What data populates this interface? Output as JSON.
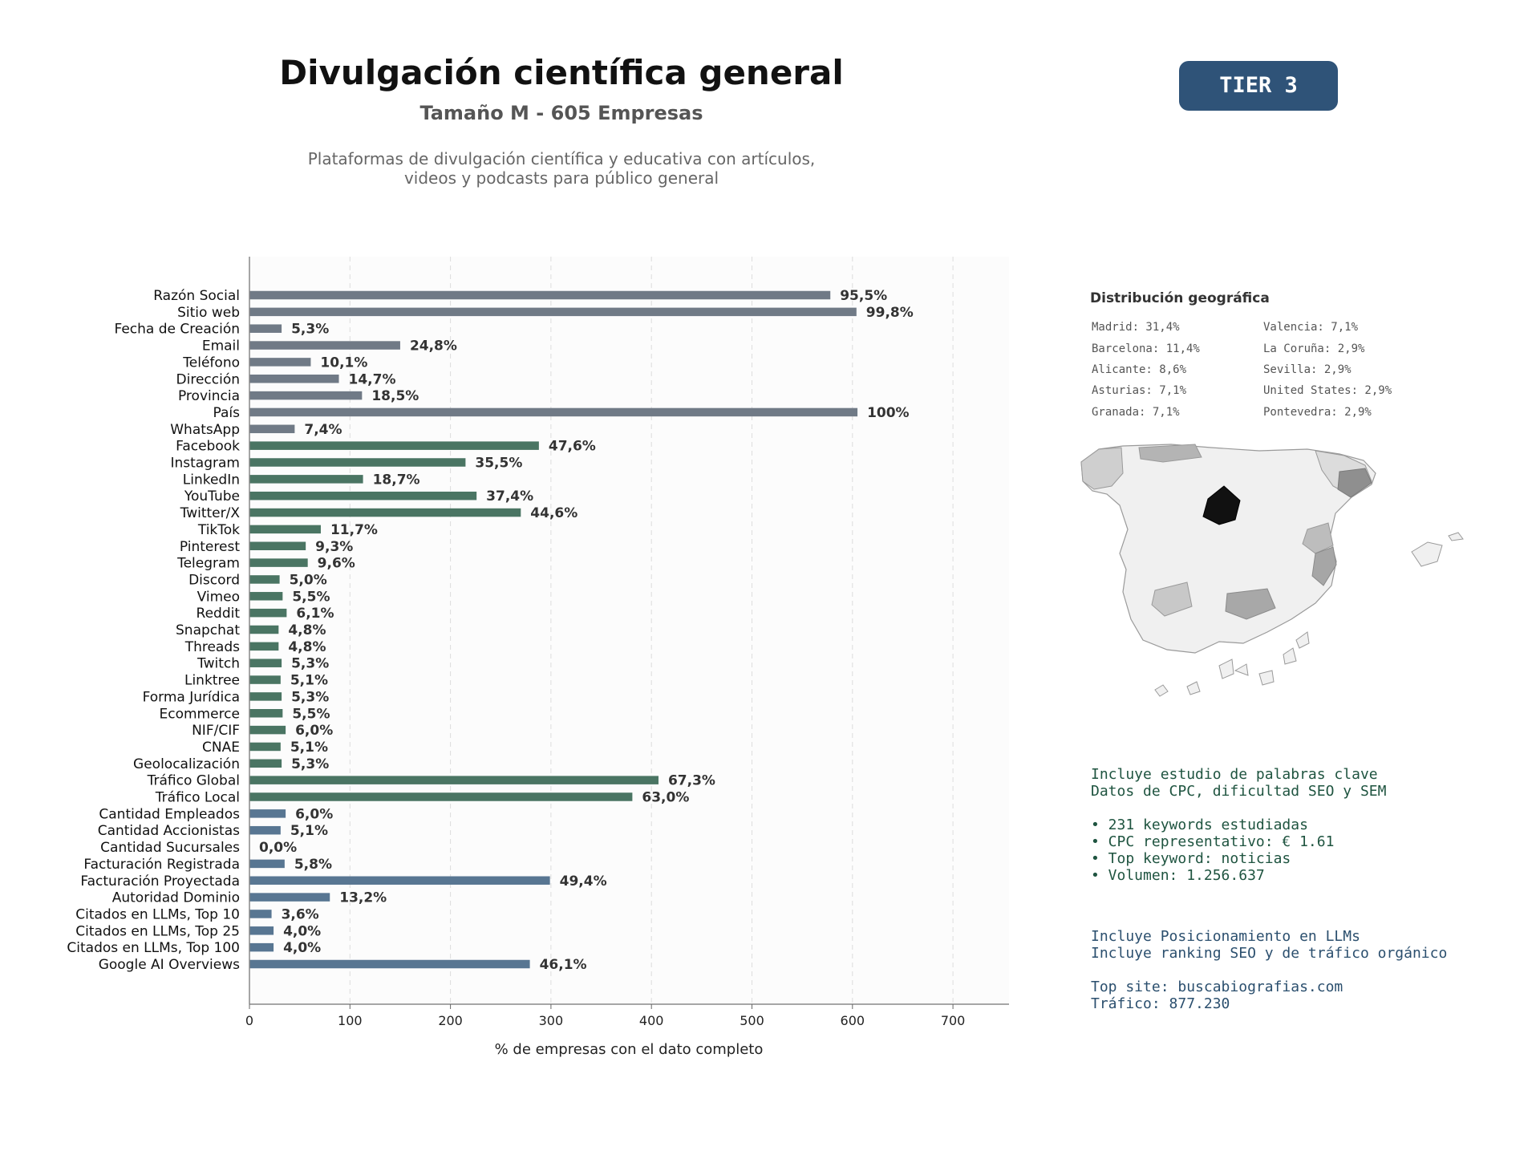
{
  "header": {
    "title": "Divulgación científica general",
    "subtitle": "Tamaño M - 605 Empresas",
    "description_line1": "Plataformas de divulgación científica y educativa con artículos,",
    "description_line2": "videos y podcasts para público general",
    "tier": "TIER 3"
  },
  "chart_data": {
    "type": "bar",
    "orientation": "horizontal",
    "title": "",
    "xlabel": "% de empresas con el dato completo",
    "ylabel": "",
    "xlim": [
      0,
      755
    ],
    "xticks": [
      0,
      100,
      200,
      300,
      400,
      500,
      600,
      700
    ],
    "grid": "x",
    "categories": [
      "Razón Social",
      "Sitio web",
      "Fecha de Creación",
      "Email",
      "Teléfono",
      "Dirección",
      "Provincia",
      "País",
      "WhatsApp",
      "Facebook",
      "Instagram",
      "LinkedIn",
      "YouTube",
      "Twitter/X",
      "TikTok",
      "Pinterest",
      "Telegram",
      "Discord",
      "Vimeo",
      "Reddit",
      "Snapchat",
      "Threads",
      "Twitch",
      "Linktree",
      "Forma Jurídica",
      "Ecommerce",
      "NIF/CIF",
      "CNAE",
      "Geolocalización",
      "Tráfico Global",
      "Tráfico Local",
      "Cantidad Empleados",
      "Cantidad Accionistas",
      "Cantidad Sucursales",
      "Facturación Registrada",
      "Facturación Proyectada",
      "Autoridad Dominio",
      "Citados en LLMs, Top 10",
      "Citados en LLMs, Top 25",
      "Citados en LLMs, Top 100",
      "Google AI Overviews"
    ],
    "values": [
      578,
      604,
      32,
      150,
      61,
      89,
      112,
      605,
      45,
      288,
      215,
      113,
      226,
      270,
      71,
      56,
      58,
      30,
      33,
      37,
      29,
      29,
      32,
      31,
      32,
      33,
      36,
      31,
      32,
      407,
      381,
      36,
      31,
      0,
      35,
      299,
      80,
      22,
      24,
      24,
      279
    ],
    "data_labels": [
      "95,5%",
      "99,8%",
      "5,3%",
      "24,8%",
      "10,1%",
      "14,7%",
      "18,5%",
      "100%",
      "7,4%",
      "47,6%",
      "35,5%",
      "18,7%",
      "37,4%",
      "44,6%",
      "11,7%",
      "9,3%",
      "9,6%",
      "5,0%",
      "5,5%",
      "6,1%",
      "4,8%",
      "4,8%",
      "5,3%",
      "5,1%",
      "5,3%",
      "5,5%",
      "6,0%",
      "5,1%",
      "5,3%",
      "67,3%",
      "63,0%",
      "6,0%",
      "5,1%",
      "0,0%",
      "5,8%",
      "49,4%",
      "13,2%",
      "3,6%",
      "4,0%",
      "4,0%",
      "46,1%"
    ],
    "groups": [
      "g",
      "g",
      "g",
      "g",
      "g",
      "g",
      "g",
      "g",
      "g",
      "s",
      "s",
      "s",
      "s",
      "s",
      "s",
      "s",
      "s",
      "s",
      "s",
      "s",
      "s",
      "s",
      "s",
      "s",
      "s",
      "s",
      "s",
      "s",
      "s",
      "s",
      "s",
      "b",
      "b",
      "b",
      "b",
      "b",
      "b",
      "b",
      "b",
      "b",
      "b"
    ],
    "colors": {
      "g": "#707a86",
      "s": "#4a7563",
      "b": "#587692"
    }
  },
  "geo": {
    "title": "Distribución geográfica",
    "left": [
      "Madrid: 31,4%",
      "Barcelona: 11,4%",
      "Alicante: 8,6%",
      "Asturias: 7,1%",
      "Granada: 7,1%"
    ],
    "right": [
      "Valencia: 7,1%",
      "La Coruña: 2,9%",
      "Sevilla: 2,9%",
      "United States: 2,9%",
      "Pontevedra: 2,9%"
    ]
  },
  "seo": {
    "line1": "Incluye estudio de palabras clave",
    "line2": "Datos de CPC, dificultad SEO y SEM",
    "bullet1": "• 231 keywords estudiadas",
    "bullet2": "• CPC representativo: € 1.61",
    "bullet3": "• Top keyword: noticias",
    "bullet4": "• Volumen: 1.256.637"
  },
  "llm": {
    "line1": "Incluye Posicionamiento en LLMs",
    "line2": "Incluye ranking SEO y de tráfico orgánico",
    "line3": "Top site: buscabiografias.com",
    "line4": "Tráfico: 877.230"
  }
}
